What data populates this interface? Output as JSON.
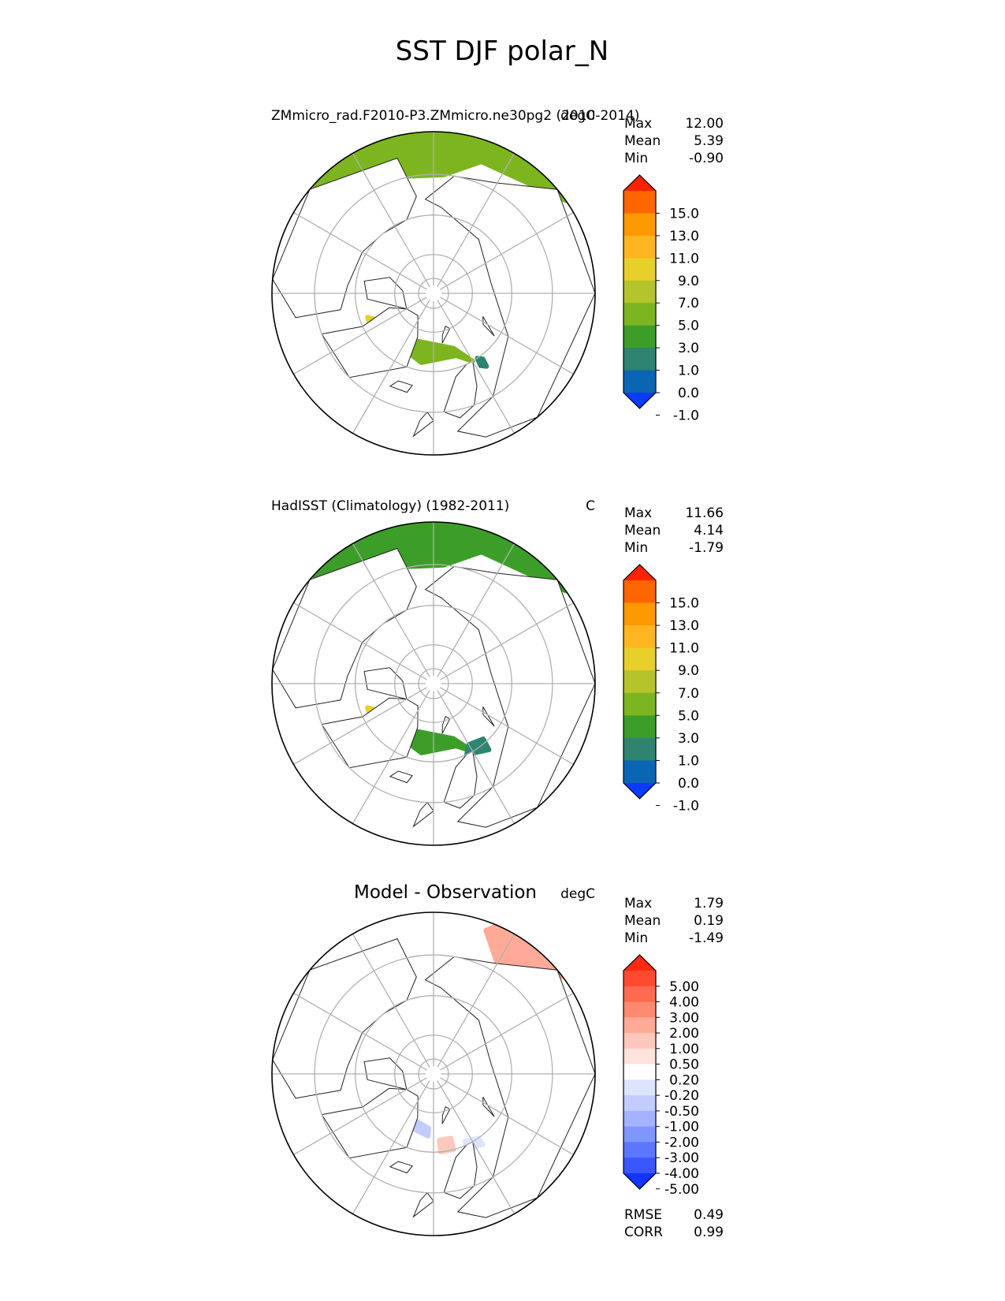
{
  "figure": {
    "title": "SST DJF polar_N"
  },
  "chart_data": [
    {
      "type": "heatmap",
      "projection": "north-polar-stereographic",
      "title_left": "ZMmicro_rad.F2010-P3.ZMmicro.ne30pg2 (2010-2014)",
      "title_right": "degC",
      "stats": [
        {
          "label": "Max",
          "value": "12.00"
        },
        {
          "label": "Mean",
          "value": "5.39"
        },
        {
          "label": "Min",
          "value": "-0.90"
        }
      ],
      "colorbar": {
        "ticks": [
          "15.0",
          "13.0",
          "11.0",
          "9.0",
          "7.0",
          "5.0",
          "3.0",
          "1.0",
          "0.0",
          "-1.0"
        ],
        "colors": [
          "#ff2200",
          "#ff6600",
          "#ff9900",
          "#ffb520",
          "#e8d02a",
          "#b4c42a",
          "#7db520",
          "#3c9e28",
          "#2e8470",
          "#0a66b4",
          "#0a3cff"
        ],
        "extend": "both"
      },
      "fields": [
        {
          "color": "#7db520",
          "points": [
            [
              -40,
              74
            ],
            [
              -10,
              72
            ],
            [
              20,
              73
            ],
            [
              30,
              70
            ],
            [
              20,
              75
            ],
            [
              -20,
              77
            ],
            [
              -45,
              76
            ]
          ]
        },
        {
          "color": "#e8d02a",
          "points": [
            [
              -45,
              70
            ],
            [
              -70,
              72
            ],
            [
              -62,
              75
            ],
            [
              -50,
              76
            ]
          ]
        },
        {
          "color": "#b4c42a",
          "points": [
            [
              -62,
              72
            ],
            [
              -40,
              70
            ],
            [
              -48,
              74
            ],
            [
              -60,
              76
            ]
          ]
        },
        {
          "color": "#2e8470",
          "points": [
            [
              33,
              68
            ],
            [
              36,
              67
            ],
            [
              37,
              69
            ],
            [
              34,
              70
            ]
          ]
        },
        {
          "color": "#7db520",
          "points": [
            [
              125,
              50
            ],
            [
              160,
              55
            ],
            [
              175,
              60
            ],
            [
              -170,
              60
            ],
            [
              -150,
              56
            ],
            [
              -130,
              52
            ],
            [
              -135,
              48
            ],
            [
              -160,
              45
            ],
            [
              170,
              45
            ],
            [
              140,
              45
            ]
          ]
        },
        {
          "color": "#e8d02a",
          "points": [
            [
              150,
              38
            ],
            [
              170,
              40
            ],
            [
              -160,
              42
            ],
            [
              -140,
              42
            ],
            [
              -135,
              45
            ],
            [
              -160,
              47
            ],
            [
              175,
              48
            ],
            [
              155,
              46
            ]
          ]
        },
        {
          "color": "#ffb520",
          "points": [
            [
              160,
              28
            ],
            [
              -170,
              30
            ],
            [
              -150,
              32
            ],
            [
              -140,
              35
            ],
            [
              -160,
              38
            ],
            [
              175,
              37
            ]
          ]
        },
        {
          "color": "#2e8470",
          "points": [
            [
              150,
              62
            ],
            [
              160,
              60
            ],
            [
              160,
              64
            ],
            [
              155,
              65
            ]
          ]
        }
      ]
    },
    {
      "type": "heatmap",
      "projection": "north-polar-stereographic",
      "title_left": "HadISST (Climatology) (1982-2011)",
      "title_right": "C",
      "stats": [
        {
          "label": "Max",
          "value": "11.66"
        },
        {
          "label": "Mean",
          "value": "4.14"
        },
        {
          "label": "Min",
          "value": "-1.79"
        }
      ],
      "colorbar": {
        "ticks": [
          "15.0",
          "13.0",
          "11.0",
          "9.0",
          "7.0",
          "5.0",
          "3.0",
          "1.0",
          "0.0",
          "-1.0"
        ],
        "colors": [
          "#ff2200",
          "#ff6600",
          "#ff9900",
          "#ffb520",
          "#e8d02a",
          "#b4c42a",
          "#7db520",
          "#3c9e28",
          "#2e8470",
          "#0a66b4",
          "#0a3cff"
        ],
        "extend": "both"
      },
      "fields": [
        {
          "color": "#3c9e28",
          "points": [
            [
              -40,
              74
            ],
            [
              -10,
              72
            ],
            [
              20,
              73
            ],
            [
              30,
              70
            ],
            [
              20,
              75
            ],
            [
              -20,
              77
            ],
            [
              -45,
              76
            ]
          ]
        },
        {
          "color": "#e8d02a",
          "points": [
            [
              -45,
              70
            ],
            [
              -70,
              72
            ],
            [
              -62,
              75
            ],
            [
              -50,
              76
            ]
          ]
        },
        {
          "color": "#2e8470",
          "points": [
            [
              25,
              70
            ],
            [
              40,
              68
            ],
            [
              42,
              71
            ],
            [
              30,
              72
            ]
          ]
        },
        {
          "color": "#3c9e28",
          "points": [
            [
              125,
              50
            ],
            [
              160,
              55
            ],
            [
              175,
              60
            ],
            [
              -170,
              60
            ],
            [
              -150,
              56
            ],
            [
              -130,
              52
            ],
            [
              -135,
              48
            ],
            [
              -160,
              45
            ],
            [
              170,
              45
            ],
            [
              140,
              45
            ]
          ]
        },
        {
          "color": "#b4c42a",
          "points": [
            [
              150,
              38
            ],
            [
              170,
              40
            ],
            [
              -160,
              42
            ],
            [
              -140,
              42
            ],
            [
              -135,
              45
            ],
            [
              -160,
              47
            ],
            [
              175,
              48
            ],
            [
              155,
              46
            ]
          ]
        },
        {
          "color": "#ffb520",
          "points": [
            [
              160,
              28
            ],
            [
              -170,
              30
            ],
            [
              -150,
              32
            ],
            [
              -140,
              35
            ],
            [
              -160,
              38
            ],
            [
              175,
              37
            ]
          ]
        },
        {
          "color": "#2e8470",
          "points": [
            [
              95,
              55
            ],
            [
              110,
              58
            ],
            [
              110,
              62
            ],
            [
              100,
              62
            ]
          ]
        },
        {
          "color": "#2e8470",
          "points": [
            [
              150,
              62
            ],
            [
              160,
              60
            ],
            [
              165,
              65
            ],
            [
              155,
              66
            ]
          ]
        }
      ]
    },
    {
      "type": "heatmap",
      "projection": "north-polar-stereographic",
      "title_left": "Model - Observation",
      "title_right": "degC",
      "stats": [
        {
          "label": "Max",
          "value": "1.79"
        },
        {
          "label": "Mean",
          "value": "0.19"
        },
        {
          "label": "Min",
          "value": "-1.49"
        }
      ],
      "colorbar": {
        "ticks": [
          "5.00",
          "4.00",
          "3.00",
          "2.00",
          "1.00",
          "0.50",
          "0.20",
          "-0.20",
          "-0.50",
          "-1.00",
          "-2.00",
          "-3.00",
          "-4.00",
          "-5.00"
        ],
        "colors": [
          "#ff2a10",
          "#ff4a30",
          "#ff6a50",
          "#ff8a70",
          "#ffaa98",
          "#ffc8bc",
          "#ffe2dc",
          "#ffffff",
          "#dde4ff",
          "#c2ccff",
          "#a4b2ff",
          "#8096ff",
          "#5c76ff",
          "#3a56ff",
          "#1434ff"
        ],
        "extend": "both"
      },
      "fields": [
        {
          "color": "#dde4ff",
          "points": [
            [
              -60,
              72
            ],
            [
              -40,
              72
            ],
            [
              -40,
              75
            ],
            [
              -55,
              76
            ]
          ]
        },
        {
          "color": "#c2ccff",
          "points": [
            [
              -20,
              75
            ],
            [
              -5,
              74
            ],
            [
              -5,
              76
            ],
            [
              -18,
              77
            ]
          ]
        },
        {
          "color": "#ffc8bc",
          "points": [
            [
              5,
              70
            ],
            [
              15,
              70
            ],
            [
              15,
              73
            ],
            [
              5,
              73
            ]
          ]
        },
        {
          "color": "#dde4ff",
          "points": [
            [
              25,
              69
            ],
            [
              35,
              68
            ],
            [
              35,
              70
            ],
            [
              25,
              71
            ]
          ]
        },
        {
          "color": "#ffaa98",
          "points": [
            [
              125,
              45
            ],
            [
              150,
              45
            ],
            [
              160,
              52
            ],
            [
              150,
              58
            ],
            [
              130,
              55
            ]
          ]
        },
        {
          "color": "#ffc8bc",
          "points": [
            [
              150,
              32
            ],
            [
              175,
              35
            ],
            [
              -160,
              40
            ],
            [
              -150,
              45
            ],
            [
              175,
              48
            ],
            [
              155,
              45
            ]
          ]
        },
        {
          "color": "#ffaa98",
          "points": [
            [
              160,
              40
            ],
            [
              -175,
              42
            ],
            [
              -165,
              46
            ],
            [
              170,
              46
            ]
          ]
        }
      ],
      "rmse": {
        "label": "RMSE",
        "value": "0.49"
      },
      "corr": {
        "label": "CORR",
        "value": "0.99"
      }
    }
  ]
}
